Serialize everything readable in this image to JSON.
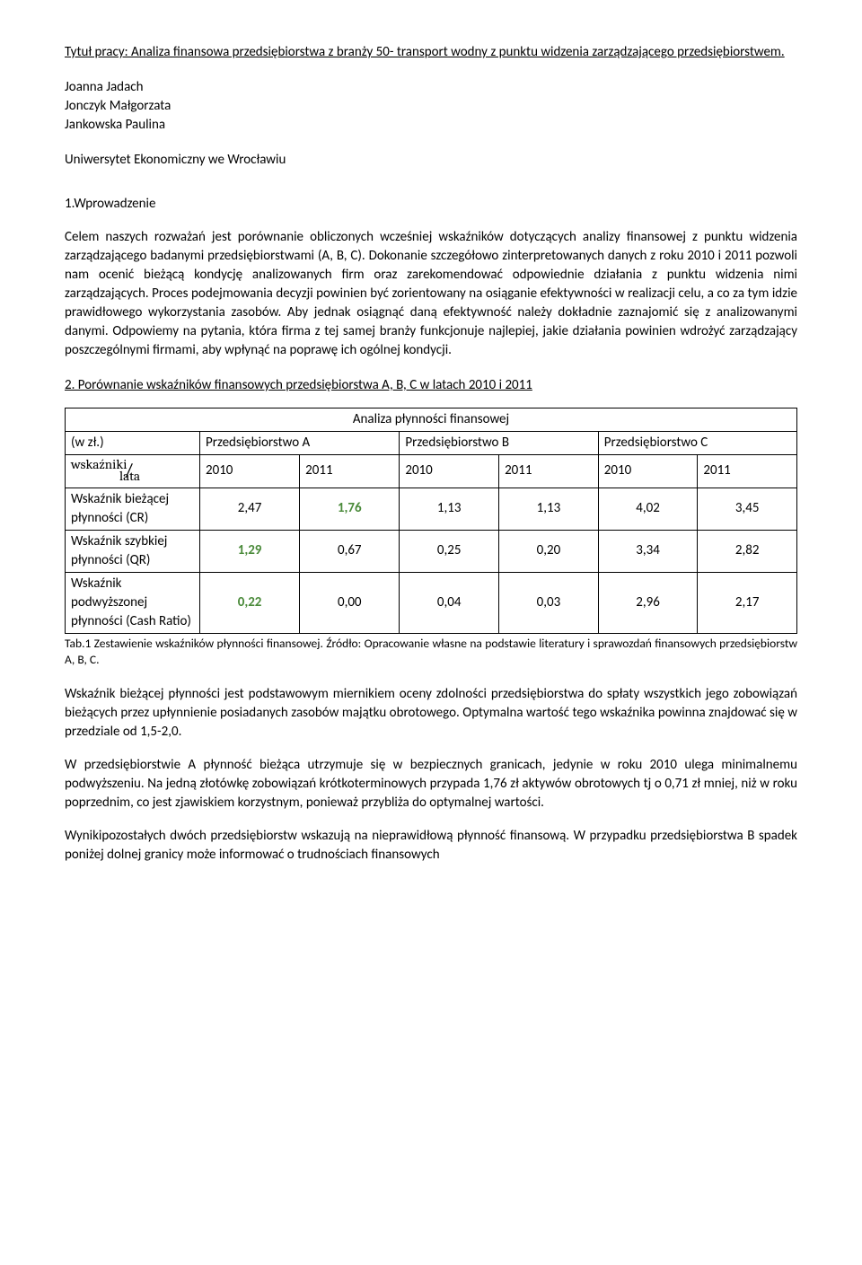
{
  "title": "Tytuł pracy: Analiza finansowa przedsiębiorstwa z branży 50- transport wodny z punktu widzenia zarządzającego przedsiębiorstwem.",
  "authors": [
    "Joanna Jadach",
    "Jonczyk Małgorzata",
    "Jankowska Paulina"
  ],
  "university": "Uniwersytet Ekonomiczny we Wrocławiu",
  "intro_heading": "1.Wprowadzenie",
  "intro_text": "Celem naszych rozważań jest porównanie obliczonych wcześniej wskaźników dotyczących analizy finansowej z punktu widzenia zarządzającego badanymi przedsiębiorstwami  (A, B, C). Dokonanie szczegółowo  zinterpretowanych danych z roku 2010 i 2011 pozwoli nam ocenić bieżącą kondycję analizowanych firm oraz zarekomendować odpowiednie działania z punktu widzenia nimi zarządzających. Proces podejmowania decyzji powinien być zorientowany na osiąganie efektywności w realizacji celu, a co za tym idzie prawidłowego wykorzystania zasobów. Aby jednak osiągnąć daną efektywność należy dokładnie zaznajomić się z analizowanymi danymi. Odpowiemy na pytania, która firma z tej samej branży funkcjonuje najlepiej, jakie działania powinien wdrożyć zarządzający poszczególnymi firmami, aby wpłynąć na poprawę ich ogólnej kondycji.",
  "section2_heading": "2. Porównanie wskaźników finansowych przedsiębiorstwa A, B, C w latach 2010 i 2011",
  "table": {
    "title": "Analiza płynności finansowej",
    "col_wzl": "(w zł.)",
    "col_a": "Przedsiębiorstwo A",
    "col_b": "Przedsiębiorstwo B",
    "col_c": "Przedsiębiorstwo C",
    "wsk_top": "wskaźniki",
    "wsk_bot": "lata",
    "years": [
      "2010",
      "2011",
      "2010",
      "2011",
      "2010",
      "2011"
    ],
    "rows": [
      {
        "label": "Wskaźnik bieżącej płynności (CR)",
        "v": [
          "2,47",
          "1,76",
          "1,13",
          "1,13",
          "4,02",
          "3,45"
        ],
        "green_idx": [
          1
        ]
      },
      {
        "label": "Wskaźnik szybkiej płynności (QR)",
        "v": [
          "1,29",
          "0,67",
          "0,25",
          "0,20",
          "3,34",
          "2,82"
        ],
        "green_idx": [
          0
        ]
      },
      {
        "label": "Wskaźnik podwyższonej płynności (Cash Ratio)",
        "v": [
          "0,22",
          "0,00",
          "0,04",
          "0,03",
          "2,96",
          "2,17"
        ],
        "green_idx": [
          0
        ]
      }
    ]
  },
  "tab_caption": "Tab.1 Zestawienie wskaźników płynności finansowej. Źródło: Opracowanie własne na podstawie literatury i sprawozdań finansowych przedsiębiorstw A, B, C.",
  "p1": "Wskaźnik bieżącej płynności jest podstawowym miernikiem oceny zdolności przedsiębiorstwa do spłaty wszystkich jego zobowiązań bieżących przez upłynnienie posiadanych zasobów majątku obrotowego. Optymalna wartość tego wskaźnika powinna znajdować się w przedziale od 1,5-2,0.",
  "p2": "W przedsiębiorstwie A płynność bieżąca utrzymuje się w bezpiecznych granicach, jedynie w roku 2010 ulega minimalnemu podwyższeniu. Na jedną złotówkę zobowiązań krótkoterminowych przypada 1,76 zł aktywów obrotowych tj o 0,71 zł mniej, niż w roku poprzednim, co jest zjawiskiem korzystnym, ponieważ przybliża do optymalnej wartości.",
  "p3": "Wynikipozostałych dwóch przedsiębiorstw wskazują na nieprawidłową płynność finansową. W przypadku przedsiębiorstwa B spadek poniżej dolnej granicy może informować o trudnościach finansowych"
}
